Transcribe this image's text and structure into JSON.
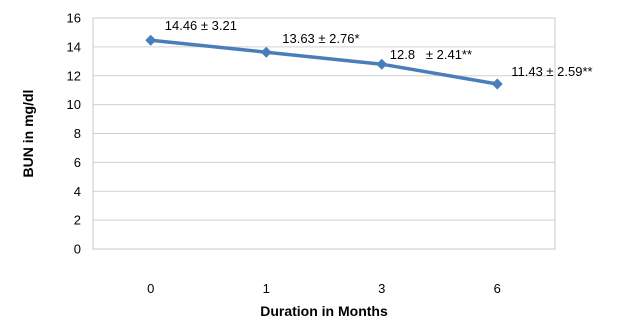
{
  "chart_data": {
    "type": "line",
    "categories": [
      "0",
      "1",
      "3",
      "6"
    ],
    "series": [
      {
        "values": [
          14.46,
          13.63,
          12.8,
          11.43
        ],
        "data_labels": [
          "14.46 ± 3.21",
          "13.63 ± 2.76*",
          "12.8   ± 2.41**",
          "11.43 ± 2.59**"
        ],
        "color": "#4a7ebb",
        "marker": "diamond"
      }
    ],
    "xlabel": "Duration in Months",
    "ylabel": "BUN in mg/dl",
    "ylim": [
      0,
      16
    ],
    "yticks": [
      "0",
      "2",
      "4",
      "6",
      "8",
      "10",
      "12",
      "14",
      "16"
    ],
    "grid": true,
    "legend": "none"
  }
}
